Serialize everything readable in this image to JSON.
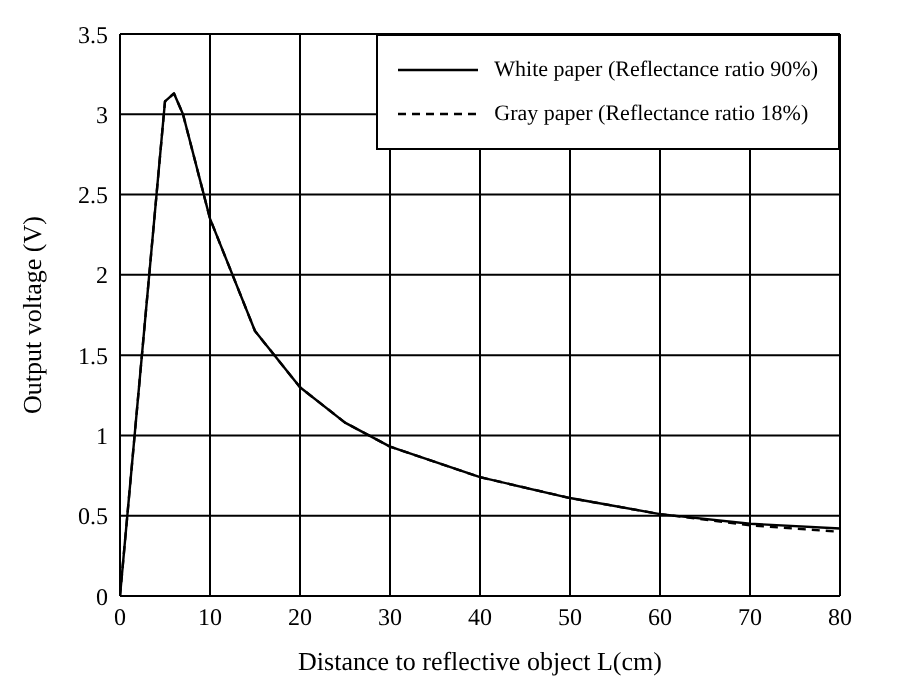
{
  "chart_data": {
    "type": "line",
    "xlabel": "Distance to reflective object L(cm)",
    "ylabel": "Output voltage (V)",
    "x": [
      0,
      5,
      6,
      7,
      10,
      15,
      20,
      25,
      30,
      40,
      50,
      60,
      70,
      80
    ],
    "series": [
      {
        "name": "White paper (Reflectance ratio 90%)",
        "color": "#000000",
        "line_style": "solid",
        "values": [
          0,
          3.08,
          3.13,
          3.0,
          2.35,
          1.65,
          1.3,
          1.08,
          0.93,
          0.74,
          0.61,
          0.51,
          0.45,
          0.42
        ]
      },
      {
        "name": "Gray paper (Reflectance ratio 18%)",
        "color": "#000000",
        "line_style": "dashed",
        "values": [
          0,
          3.08,
          3.13,
          3.0,
          2.35,
          1.65,
          1.3,
          1.08,
          0.93,
          0.74,
          0.61,
          0.51,
          0.44,
          0.4
        ]
      }
    ],
    "xlim": [
      0,
      80
    ],
    "xticks": [
      0,
      10,
      20,
      30,
      40,
      50,
      60,
      70,
      80
    ],
    "ylim": [
      0,
      3.5
    ],
    "yticks": [
      0,
      0.5,
      1,
      1.5,
      2,
      2.5,
      3,
      3.5
    ],
    "grid": true,
    "legend": "top right",
    "marker": "none"
  }
}
